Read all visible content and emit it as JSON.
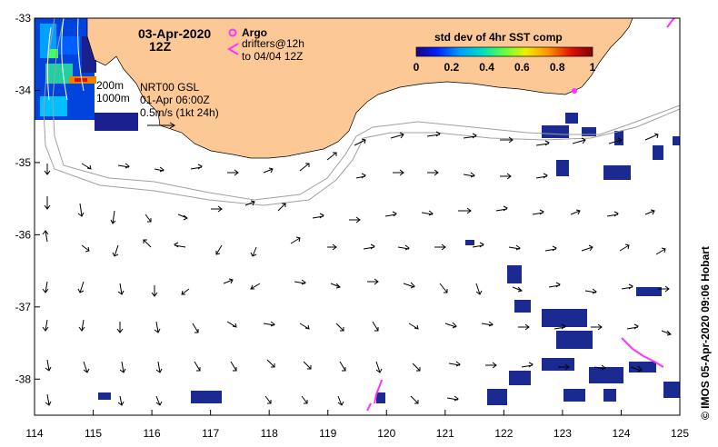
{
  "title": {
    "date": "03-Apr-2020",
    "time": "12Z"
  },
  "legend": {
    "argo_label": "Argo",
    "drifters_label": "drifters@12h",
    "drifters_until": "to 04/04 12Z",
    "argo_color": "#ff33ff",
    "drifter_color": "#ff33ff"
  },
  "colorbar": {
    "title": "std dev of 4hr SST comp",
    "ticks": [
      "0",
      "0.2",
      "0.4",
      "0.6",
      "0.8",
      "1"
    ],
    "stops": [
      "#1a0080",
      "#0022ff",
      "#00a0ff",
      "#00e0c0",
      "#60ff40",
      "#f0f000",
      "#ff9000",
      "#e01000",
      "#800000"
    ]
  },
  "annotations": {
    "isobath_200": "200m",
    "isobath_1000": "1000m",
    "product": "NRT00 GSL",
    "product_time": "01-Apr 06:00Z",
    "scale_label": "0.5m/s (1kt 24h)"
  },
  "credit": "© IMOS 05-Apr-2020 09:06 Hobart",
  "axes": {
    "x_ticks": [
      "114",
      "115",
      "116",
      "117",
      "118",
      "119",
      "120",
      "121",
      "122",
      "123",
      "124",
      "125"
    ],
    "y_ticks": [
      "-33",
      "-34",
      "-35",
      "-36",
      "-37",
      "-38"
    ],
    "xlim": [
      114,
      125
    ],
    "ylim": [
      -38.5,
      -33
    ]
  },
  "colors": {
    "land": "#fcc896",
    "isobath": "#a0a0a0",
    "arrow": "#000000"
  }
}
